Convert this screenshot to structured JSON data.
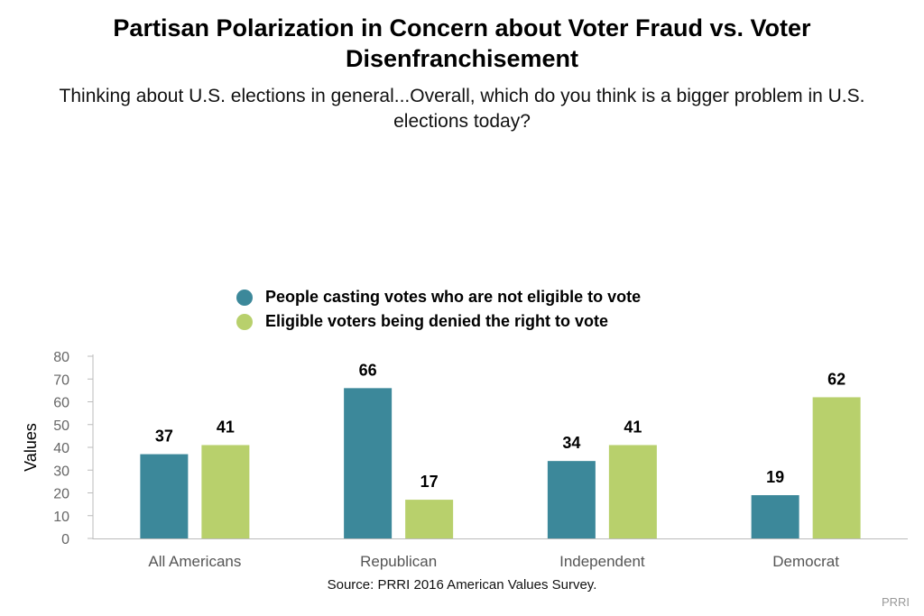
{
  "chart_data": {
    "type": "bar",
    "title": "Partisan Polarization in Concern about Voter Fraud vs. Voter Disenfranchisement",
    "subtitle": "Thinking about U.S. elections in general...Overall, which do you think is a bigger problem in U.S. elections today?",
    "categories": [
      "All Americans",
      "Republican",
      "Independent",
      "Democrat"
    ],
    "series": [
      {
        "name": "People casting votes who are not eligible to vote",
        "color": "#3c889a",
        "values": [
          37,
          66,
          34,
          19
        ]
      },
      {
        "name": "Eligible voters being denied the right to vote",
        "color": "#b8d06c",
        "values": [
          41,
          17,
          41,
          62
        ]
      }
    ],
    "ylabel": "Values",
    "xlabel": "",
    "ylim": [
      0,
      80
    ],
    "yticks": [
      0,
      10,
      20,
      30,
      40,
      50,
      60,
      70,
      80
    ],
    "grid": false,
    "legend_position": "top-center",
    "source": "Source: PRRI 2016 American Values Survey.",
    "credit": "PRRI"
  }
}
